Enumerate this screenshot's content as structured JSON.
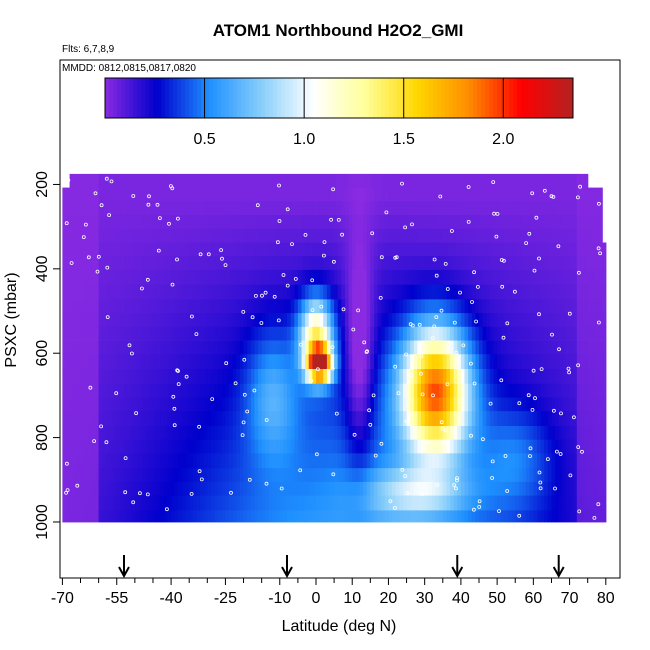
{
  "chart_data": {
    "type": "heatmap",
    "title": "ATOM1 Northbound H2O2_GMI",
    "subtitle_flights": "Flts: 6,7,8,9",
    "subtitle_dates": "MMDD: 0812,0815,0817,0820",
    "xlabel": "Latitude (deg N)",
    "ylabel": "PSXC (mbar)",
    "xlim": [
      -70,
      80
    ],
    "ylim": [
      1000,
      120
    ],
    "x_ticks": [
      -70,
      -55,
      -40,
      -25,
      -10,
      0,
      10,
      20,
      30,
      40,
      50,
      60,
      70,
      80
    ],
    "x_minor_ticks": [
      -65,
      -60,
      -50,
      -45,
      -35,
      -30,
      -20,
      -15,
      -5,
      5,
      15,
      25,
      35,
      45,
      55,
      65,
      75
    ],
    "y_ticks": [
      200,
      400,
      600,
      800,
      1000
    ],
    "colorbar": {
      "range": [
        0,
        2.35
      ],
      "ticks": [
        0.5,
        1.0,
        1.5,
        2.0
      ],
      "tick_labels": [
        "0.5",
        "1.0",
        "1.5",
        "2.0"
      ],
      "colors": [
        "#8a2be2",
        "#0000cd",
        "#1e90ff",
        "#87cefa",
        "#ffffff",
        "#ffff99",
        "#ffd700",
        "#ff8c00",
        "#ff0000",
        "#b22222"
      ]
    },
    "arrow_latitudes": [
      -53,
      -8,
      39,
      67
    ],
    "pressure_levels": [
      190,
      225,
      255,
      290,
      320,
      355,
      385,
      420,
      455,
      490,
      520,
      555,
      585,
      620,
      655,
      690,
      720,
      755,
      790,
      820,
      855,
      890,
      920,
      955,
      990
    ]
  }
}
